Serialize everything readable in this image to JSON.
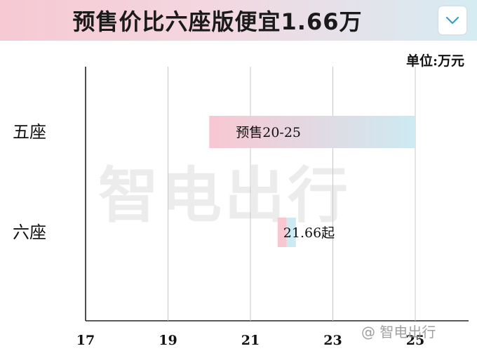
{
  "title": "预售价比六座版便宜1.66万",
  "unit": "单位:万元",
  "watermark": "智电出行",
  "watermark_small": "@ 智电出行",
  "chart_data": {
    "type": "bar",
    "orientation": "horizontal",
    "title": "预售价比六座版便宜1.66万",
    "xlabel": "",
    "ylabel": "",
    "unit": "单位:万元",
    "categories": [
      "五座",
      "六座"
    ],
    "ranges": [
      {
        "category": "五座",
        "start": 20,
        "end": 25,
        "label": "预售20-25"
      },
      {
        "category": "六座",
        "start": 21.66,
        "end": 21.86,
        "label": "21.66起"
      }
    ],
    "xlim": [
      17,
      25
    ],
    "xticks": [
      "17",
      "19",
      "21",
      "23",
      "25"
    ],
    "grid": true,
    "colors": [
      "#f8c7d2",
      "#cdeaf2"
    ]
  }
}
